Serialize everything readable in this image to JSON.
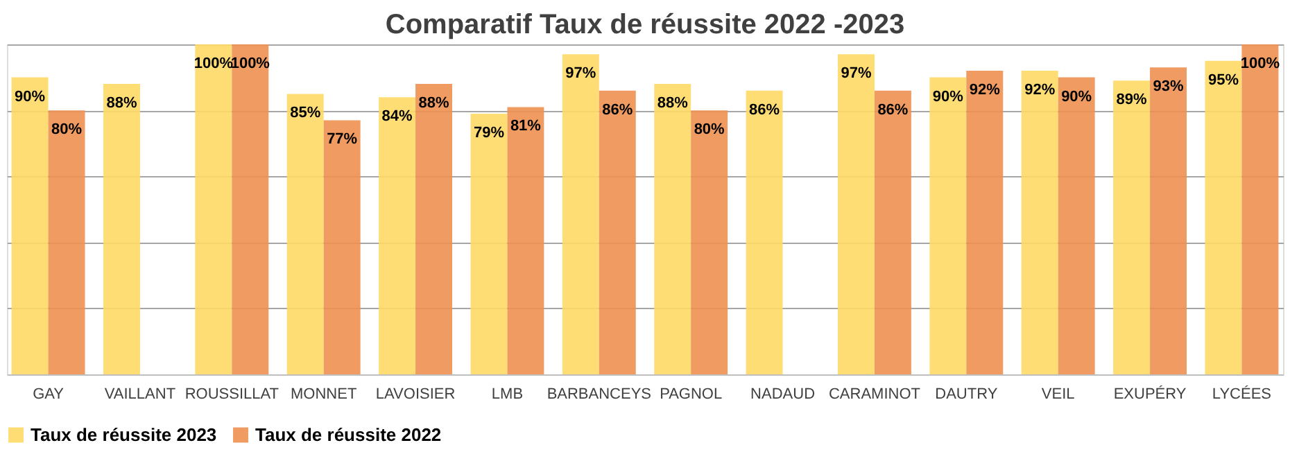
{
  "chart_data": {
    "type": "bar",
    "title": "Comparatif Taux de réussite 2022 -2023",
    "categories": [
      "GAY",
      "VAILLANT",
      "ROUSSILLAT",
      "MONNET",
      "LAVOISIER",
      "LMB",
      "BARBANCEYS",
      "PAGNOL",
      "NADAUD",
      "CARAMINOT",
      "DAUTRY",
      "VEIL",
      "EXUPÉRY",
      "LYCÉES"
    ],
    "series": [
      {
        "name": "Taux de réussite 2023",
        "color": "#ffd966",
        "values": [
          90,
          88,
          100,
          85,
          84,
          79,
          97,
          88,
          86,
          97,
          90,
          92,
          89,
          95
        ],
        "value_labels": [
          "90%",
          "88%",
          "100%",
          "85%",
          "84%",
          "79%",
          "97%",
          "88%",
          "86%",
          "97%",
          "90%",
          "92%",
          "89%",
          "95%"
        ]
      },
      {
        "name": "Taux de réussite 2022",
        "color": "#ed9050",
        "values": [
          80,
          null,
          100,
          77,
          88,
          81,
          86,
          80,
          null,
          86,
          92,
          90,
          93,
          100
        ],
        "value_labels": [
          "80%",
          null,
          "100%",
          "77%",
          "88%",
          "81%",
          "86%",
          "80%",
          null,
          "86%",
          "92%",
          "90%",
          "93%",
          "100%"
        ]
      }
    ],
    "ylim": [
      0,
      100
    ],
    "yticks": [
      {
        "value": 0,
        "label": null
      },
      {
        "value": 20,
        "label": null
      },
      {
        "value": 40,
        "label": null
      },
      {
        "value": 60,
        "label": null
      },
      {
        "value": 80,
        "label": null
      },
      {
        "value": 100,
        "label": null
      }
    ],
    "grid": "y",
    "legend": "bottom",
    "tick_labels": "x"
  }
}
